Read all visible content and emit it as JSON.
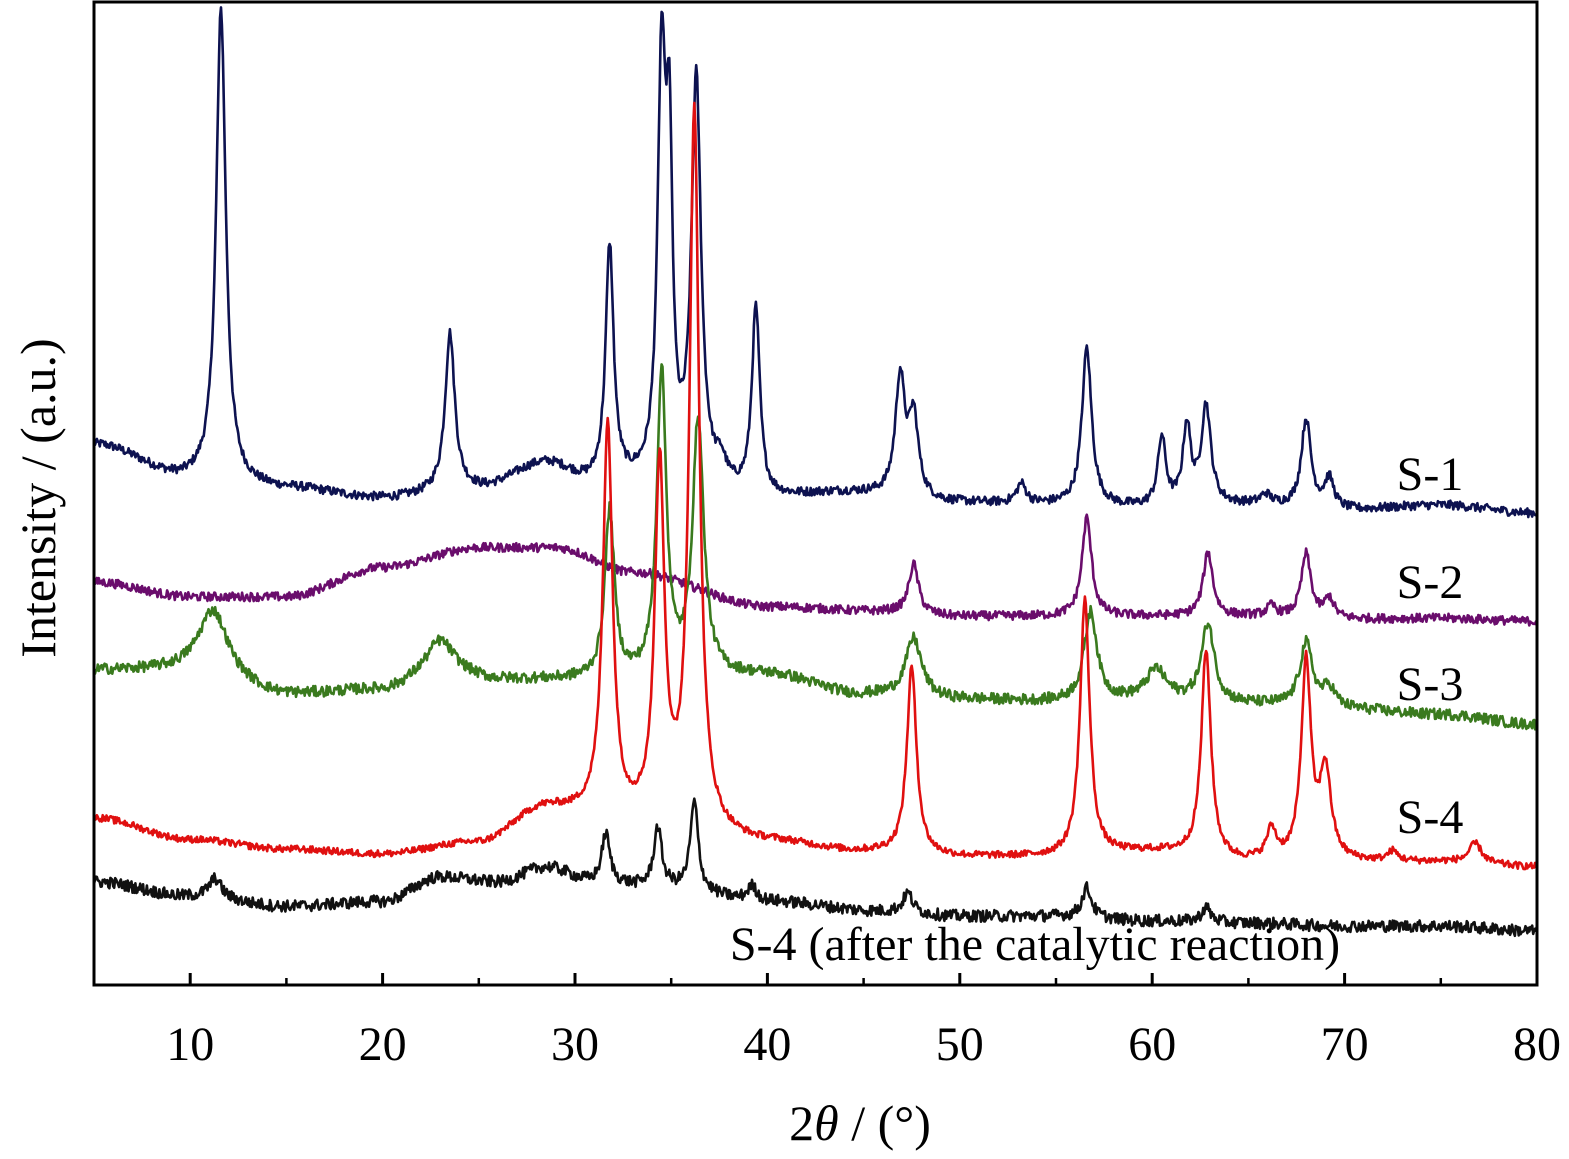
{
  "chart_data": {
    "type": "line",
    "title": "",
    "xlabel_prefix": "2",
    "xlabel_theta": "θ",
    "xlabel_suffix": " / (°)",
    "ylabel": "Intensity / (a.u.)",
    "xlim": [
      5,
      80
    ],
    "ylim": [
      0,
      100
    ],
    "x_ticks": [
      10,
      20,
      30,
      40,
      50,
      60,
      70,
      80
    ],
    "x_minor_ticks": [
      15,
      25,
      35,
      45,
      55,
      65,
      75
    ],
    "y_ticks_shown": false,
    "grid": false,
    "legend": "inline labels at right of each trace",
    "series": [
      {
        "name": "S-1",
        "color": "#0d1250",
        "baseline": [
          [
            5,
            55
          ],
          [
            10,
            51.5
          ],
          [
            15,
            50.5
          ],
          [
            20,
            49.5
          ],
          [
            25,
            50.5
          ],
          [
            28.5,
            53
          ],
          [
            31,
            51
          ],
          [
            36,
            50.5
          ],
          [
            40,
            49.5
          ],
          [
            44,
            50
          ],
          [
            50,
            49
          ],
          [
            55,
            48.8
          ],
          [
            60,
            48.5
          ],
          [
            65,
            48.8
          ],
          [
            70,
            48.3
          ],
          [
            75,
            48.8
          ],
          [
            80,
            48
          ]
        ],
        "peaks": [
          [
            11.6,
            48,
            0.3
          ],
          [
            23.5,
            16,
            0.3
          ],
          [
            31.8,
            24,
            0.25
          ],
          [
            34.5,
            41,
            0.25
          ],
          [
            34.9,
            30,
            0.2
          ],
          [
            36.3,
            41,
            0.3
          ],
          [
            37.6,
            2,
            0.3
          ],
          [
            39.4,
            19,
            0.25
          ],
          [
            46.9,
            12,
            0.3
          ],
          [
            47.6,
            8,
            0.3
          ],
          [
            53.2,
            2,
            0.3
          ],
          [
            56.6,
            16,
            0.3
          ],
          [
            60.5,
            7,
            0.25
          ],
          [
            61.8,
            8,
            0.25
          ],
          [
            62.8,
            10,
            0.3
          ],
          [
            65.9,
            1,
            0.3
          ],
          [
            68,
            9,
            0.3
          ],
          [
            69.2,
            3,
            0.3
          ]
        ]
      },
      {
        "name": "S-2",
        "color": "#6a0d6c",
        "baseline": [
          [
            5,
            41
          ],
          [
            10,
            39.5
          ],
          [
            15,
            39.5
          ],
          [
            20,
            42.5
          ],
          [
            25,
            44.5
          ],
          [
            29,
            44.5
          ],
          [
            33,
            42
          ],
          [
            40,
            38.5
          ],
          [
            46,
            38
          ],
          [
            50,
            37.5
          ],
          [
            55,
            37.5
          ],
          [
            60,
            37.5
          ],
          [
            65,
            37.5
          ],
          [
            70,
            37.2
          ],
          [
            75,
            37.3
          ],
          [
            80,
            37
          ]
        ],
        "peaks": [
          [
            47.6,
            5,
            0.3
          ],
          [
            56.6,
            10,
            0.3
          ],
          [
            62.9,
            6.5,
            0.3
          ],
          [
            66.2,
            1,
            0.3
          ],
          [
            68,
            6.5,
            0.3
          ],
          [
            69.2,
            2,
            0.3
          ]
        ]
      },
      {
        "name": "S-3",
        "color": "#3a7a1e",
        "baseline": [
          [
            5,
            32
          ],
          [
            10,
            32
          ],
          [
            15,
            29.5
          ],
          [
            20,
            30
          ],
          [
            23,
            32
          ],
          [
            26,
            31
          ],
          [
            30,
            31
          ],
          [
            33,
            31
          ],
          [
            40,
            31.5
          ],
          [
            45,
            29.5
          ],
          [
            50,
            29
          ],
          [
            55,
            28.8
          ],
          [
            60,
            29
          ],
          [
            65,
            28.5
          ],
          [
            70,
            28
          ],
          [
            75,
            27.5
          ],
          [
            80,
            26.5
          ]
        ],
        "peaks": [
          [
            11.2,
            6.5,
            0.9
          ],
          [
            23,
            3,
            0.8
          ],
          [
            31.8,
            17,
            0.3
          ],
          [
            34.5,
            31,
            0.3
          ],
          [
            36.4,
            26,
            0.35
          ],
          [
            47.6,
            6,
            0.5
          ],
          [
            56.8,
            9,
            0.4
          ],
          [
            60.2,
            3,
            0.6
          ],
          [
            62.9,
            8,
            0.4
          ],
          [
            68,
            6.5,
            0.4
          ],
          [
            69.2,
            2,
            0.4
          ]
        ]
      },
      {
        "name": "S-4",
        "color": "#e01010",
        "baseline": [
          [
            5,
            17
          ],
          [
            10,
            14.8
          ],
          [
            15,
            13.8
          ],
          [
            20,
            13.3
          ],
          [
            25,
            14.5
          ],
          [
            28.5,
            18
          ],
          [
            30.5,
            17.5
          ],
          [
            33,
            16.5
          ],
          [
            40,
            14.5
          ],
          [
            45,
            13.5
          ],
          [
            50,
            13
          ],
          [
            55,
            13
          ],
          [
            60,
            13.5
          ],
          [
            65,
            12.5
          ],
          [
            70,
            12.5
          ],
          [
            75,
            12.5
          ],
          [
            80,
            12
          ]
        ],
        "peaks": [
          [
            31.7,
            40,
            0.3
          ],
          [
            34.4,
            36,
            0.3
          ],
          [
            36.2,
            73,
            0.3
          ],
          [
            47.5,
            19,
            0.3
          ],
          [
            56.5,
            26,
            0.3
          ],
          [
            62.8,
            21,
            0.3
          ],
          [
            66.2,
            3,
            0.3
          ],
          [
            68,
            20,
            0.3
          ],
          [
            69,
            9,
            0.35
          ],
          [
            72.5,
            1,
            0.3
          ],
          [
            76.8,
            2,
            0.4
          ]
        ]
      },
      {
        "name": "S-4 (after the catalytic reaction)",
        "color": "#111111",
        "baseline": [
          [
            5,
            10.5
          ],
          [
            10,
            9
          ],
          [
            15,
            8
          ],
          [
            20,
            8.5
          ],
          [
            23,
            11
          ],
          [
            26,
            10.5
          ],
          [
            28.5,
            12
          ],
          [
            31,
            10.5
          ],
          [
            34,
            10
          ],
          [
            40,
            8.5
          ],
          [
            46,
            7.5
          ],
          [
            50,
            7
          ],
          [
            55,
            7
          ],
          [
            60,
            6.5
          ],
          [
            65,
            6.3
          ],
          [
            70,
            6
          ],
          [
            75,
            6
          ],
          [
            80,
            5.5
          ]
        ],
        "peaks": [
          [
            11.3,
            2,
            0.4
          ],
          [
            31.6,
            5,
            0.25
          ],
          [
            34.3,
            6,
            0.25
          ],
          [
            36.2,
            9,
            0.25
          ],
          [
            39.2,
            1.5,
            0.3
          ],
          [
            47.3,
            2,
            0.3
          ],
          [
            56.6,
            3,
            0.3
          ],
          [
            62.8,
            1.5,
            0.3
          ]
        ]
      }
    ]
  }
}
